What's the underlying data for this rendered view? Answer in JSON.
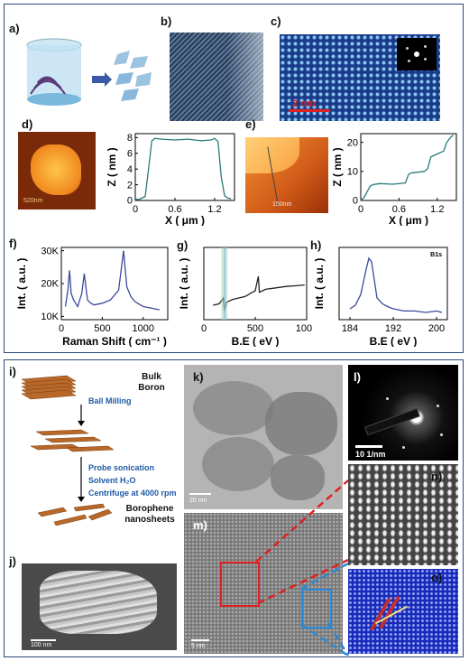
{
  "labels": {
    "a": "a)",
    "b": "b)",
    "c": "c)",
    "d": "d)",
    "e": "e)",
    "f": "f)",
    "g": "g)",
    "h": "h)",
    "i": "i)",
    "j": "j)",
    "k": "k)",
    "l": "l)",
    "m": "m)",
    "n": "n)",
    "o": "o)"
  },
  "scale_bars": {
    "c": "2 nm",
    "d": "520nm",
    "e": "150nm",
    "j": "100 nm",
    "k": "20 nm",
    "l": "10 1/nm",
    "m": "5 nm"
  },
  "flowchart": {
    "bulk": "Bulk\nBoron",
    "step1": "Ball Milling",
    "step2_line1": "Probe sonication",
    "step2_line2": "Solvent H₂O",
    "step2_line3": "Centrifuge at 4000 rpm",
    "product": "Borophene\nnanosheets"
  },
  "chart_data": [
    {
      "id": "d-profile",
      "type": "line",
      "xlabel": "X ( μm )",
      "ylabel": "Z ( nm )",
      "xlim": [
        0,
        1.5
      ],
      "ylim": [
        0,
        8.5
      ],
      "xticks": [
        "0",
        "0.6",
        "1.2"
      ],
      "yticks": [
        "0",
        "2",
        "4",
        "6",
        "8"
      ],
      "series": [
        {
          "x": [
            0,
            0.05,
            0.1,
            0.15,
            0.2,
            0.25,
            0.3,
            0.4,
            0.6,
            0.8,
            1.0,
            1.15,
            1.2,
            1.25,
            1.3,
            1.35,
            1.4,
            1.45
          ],
          "y": [
            0.2,
            0.1,
            0.3,
            0.5,
            4,
            7.6,
            7.9,
            7.8,
            7.7,
            7.8,
            7.6,
            7.7,
            7.9,
            7.5,
            3,
            0.6,
            0.3,
            0.2
          ]
        }
      ]
    },
    {
      "id": "e-profile",
      "type": "line",
      "xlabel": "X ( μm )",
      "ylabel": "Z ( nm )",
      "xlim": [
        0,
        1.5
      ],
      "ylim": [
        0,
        23
      ],
      "xticks": [
        "0",
        "0.6",
        "1.2"
      ],
      "yticks": [
        "0",
        "10",
        "20"
      ],
      "series": [
        {
          "x": [
            0,
            0.05,
            0.1,
            0.15,
            0.2,
            0.3,
            0.5,
            0.6,
            0.7,
            0.75,
            0.8,
            1.0,
            1.05,
            1.1,
            1.2,
            1.3,
            1.35,
            1.4,
            1.45
          ],
          "y": [
            0,
            1,
            3,
            5,
            5.5,
            5.8,
            5.6,
            5.8,
            6,
            9,
            9.5,
            10,
            11,
            15,
            16,
            17,
            20,
            21.5,
            22.5
          ]
        }
      ]
    },
    {
      "id": "f-raman",
      "type": "line",
      "xlabel": "Raman Shift ( cm⁻¹ )",
      "ylabel": "Int. ( a.u. )",
      "xlim": [
        0,
        1300
      ],
      "ylim": [
        9000,
        31000
      ],
      "xticks": [
        "0",
        "500",
        "1000"
      ],
      "yticks": [
        "10K",
        "20K",
        "30K"
      ],
      "series": [
        {
          "x": [
            50,
            80,
            100,
            120,
            150,
            200,
            250,
            280,
            320,
            360,
            400,
            500,
            600,
            700,
            730,
            760,
            800,
            850,
            900,
            1000,
            1100,
            1200
          ],
          "y": [
            13000,
            18000,
            24000,
            17000,
            15000,
            13000,
            17000,
            23000,
            15000,
            14000,
            13500,
            14000,
            15000,
            18000,
            24000,
            30000,
            19000,
            16000,
            14500,
            13000,
            12500,
            12000
          ]
        }
      ]
    },
    {
      "id": "g-xps",
      "type": "line",
      "xlabel": "B.E ( eV )",
      "ylabel": "Int. ( a.u. )",
      "xlim": [
        0,
        1000
      ],
      "ylim": [
        0,
        1
      ],
      "xticks": [
        "0",
        "500",
        "1000"
      ],
      "yticks": [],
      "series": [
        {
          "x": [
            90,
            150,
            190,
            200,
            220,
            280,
            400,
            500,
            530,
            540,
            600,
            700,
            800,
            900,
            980
          ],
          "y": [
            0.2,
            0.22,
            0.3,
            0.12,
            0.24,
            0.28,
            0.32,
            0.4,
            0.6,
            0.38,
            0.42,
            0.44,
            0.46,
            0.47,
            0.48
          ]
        }
      ]
    },
    {
      "id": "h-b1s",
      "type": "line",
      "xlabel": "B.E ( eV )",
      "ylabel": "Int. ( a.u. )",
      "xlim": [
        182,
        202
      ],
      "ylim": [
        0,
        1
      ],
      "xticks": [
        "184",
        "192",
        "200"
      ],
      "yticks": [],
      "annotation": "B1s",
      "series": [
        {
          "x": [
            184,
            185,
            186,
            187,
            187.5,
            188,
            188.5,
            189,
            190,
            191,
            192,
            194,
            196,
            198,
            200,
            201
          ],
          "y": [
            0.15,
            0.2,
            0.35,
            0.7,
            0.85,
            0.8,
            0.55,
            0.3,
            0.22,
            0.18,
            0.15,
            0.12,
            0.12,
            0.1,
            0.12,
            0.1
          ]
        }
      ]
    }
  ],
  "colors": {
    "frame": "#2b4a7a",
    "line": "#2a7a7a",
    "raman": "#3a4a9a",
    "xps": "#222222",
    "red": "#e02020",
    "blue": "#2a8ad8",
    "flow": "#1f5aa6",
    "flake": "#b8692a"
  }
}
